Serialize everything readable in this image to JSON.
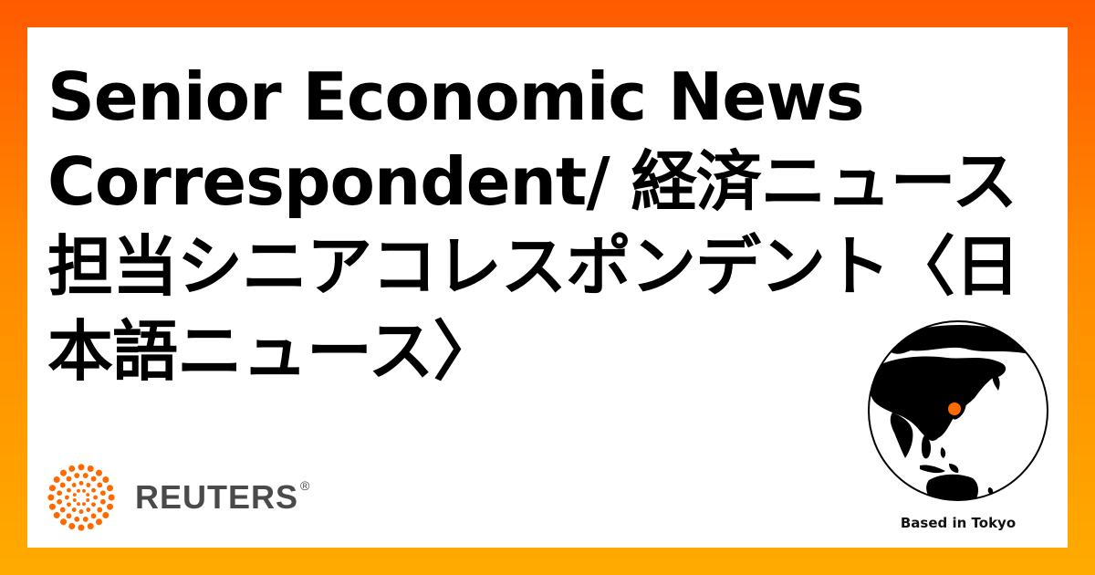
{
  "headline": "Senior Economic News Correspondent/ 経済ニュース担当シニアコレスポンデント〈日本語ニュース〉",
  "brand": {
    "name": "REUTERS",
    "registered_mark": "®",
    "logo_icon": "reuters-dot-logo-icon",
    "accent_color": "#ff6a00",
    "text_color": "#4a4a4a"
  },
  "location": {
    "label": "Based in Tokyo",
    "globe_icon": "globe-icon",
    "marker_color": "#ff6a00"
  },
  "colors": {
    "background_top": "#ff5a00",
    "background_bottom": "#ffab00",
    "card": "#ffffff"
  }
}
